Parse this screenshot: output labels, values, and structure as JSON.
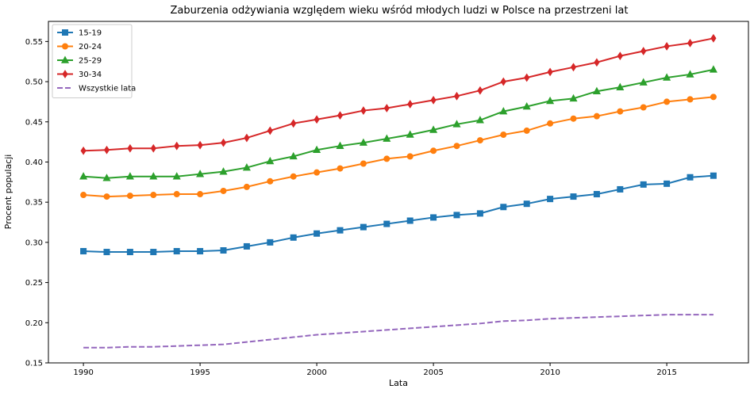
{
  "chart_data": {
    "type": "line",
    "title": "Zaburzenia odżywiania względem wieku wśród młodych ludzi w Polsce na przestrzeni lat",
    "xlabel": "Lata",
    "ylabel": "Procent populacji",
    "xlim": [
      1988.5,
      2018.5
    ],
    "ylim": [
      0.15,
      0.575
    ],
    "xticks": [
      "1990",
      "1995",
      "2000",
      "2005",
      "2010",
      "2015"
    ],
    "yticks": [
      "0.15",
      "0.20",
      "0.25",
      "0.30",
      "0.35",
      "0.40",
      "0.45",
      "0.50",
      "0.55"
    ],
    "grid": false,
    "legend_position": "top-left",
    "x": [
      1990,
      1991,
      1992,
      1993,
      1994,
      1995,
      1996,
      1997,
      1998,
      1999,
      2000,
      2001,
      2002,
      2003,
      2004,
      2005,
      2006,
      2007,
      2008,
      2009,
      2010,
      2011,
      2012,
      2013,
      2014,
      2015,
      2016,
      2017
    ],
    "series": [
      {
        "name": "15-19",
        "color": "#1f77b4",
        "marker": "square",
        "dashed": false,
        "values": [
          0.289,
          0.288,
          0.288,
          0.288,
          0.289,
          0.289,
          0.29,
          0.295,
          0.3,
          0.306,
          0.311,
          0.315,
          0.319,
          0.323,
          0.327,
          0.331,
          0.334,
          0.336,
          0.344,
          0.348,
          0.354,
          0.357,
          0.36,
          0.366,
          0.372,
          0.373,
          0.381,
          0.383
        ]
      },
      {
        "name": "20-24",
        "color": "#ff7f0e",
        "marker": "circle",
        "dashed": false,
        "values": [
          0.359,
          0.357,
          0.358,
          0.359,
          0.36,
          0.36,
          0.364,
          0.369,
          0.376,
          0.382,
          0.387,
          0.392,
          0.398,
          0.404,
          0.407,
          0.414,
          0.42,
          0.427,
          0.434,
          0.439,
          0.448,
          0.454,
          0.457,
          0.463,
          0.468,
          0.475,
          0.478,
          0.481
        ]
      },
      {
        "name": "25-29",
        "color": "#2ca02c",
        "marker": "triangle",
        "dashed": false,
        "values": [
          0.382,
          0.38,
          0.382,
          0.382,
          0.382,
          0.385,
          0.388,
          0.393,
          0.401,
          0.407,
          0.415,
          0.42,
          0.424,
          0.429,
          0.434,
          0.44,
          0.447,
          0.452,
          0.463,
          0.469,
          0.476,
          0.479,
          0.488,
          0.493,
          0.499,
          0.505,
          0.509,
          0.515
        ]
      },
      {
        "name": "30-34",
        "color": "#d62728",
        "marker": "diamond",
        "dashed": false,
        "values": [
          0.414,
          0.415,
          0.417,
          0.417,
          0.42,
          0.421,
          0.424,
          0.43,
          0.439,
          0.448,
          0.453,
          0.458,
          0.464,
          0.467,
          0.472,
          0.477,
          0.482,
          0.489,
          0.5,
          0.505,
          0.512,
          0.518,
          0.524,
          0.532,
          0.538,
          0.544,
          0.548,
          0.554
        ]
      },
      {
        "name": "Wszystkie lata",
        "color": "#9467bd",
        "marker": "none",
        "dashed": true,
        "values": [
          0.169,
          0.169,
          0.17,
          0.17,
          0.171,
          0.172,
          0.173,
          0.176,
          0.179,
          0.182,
          0.185,
          0.187,
          0.189,
          0.191,
          0.193,
          0.195,
          0.197,
          0.199,
          0.202,
          0.203,
          0.205,
          0.206,
          0.207,
          0.208,
          0.209,
          0.21,
          0.21,
          0.21
        ]
      }
    ]
  }
}
